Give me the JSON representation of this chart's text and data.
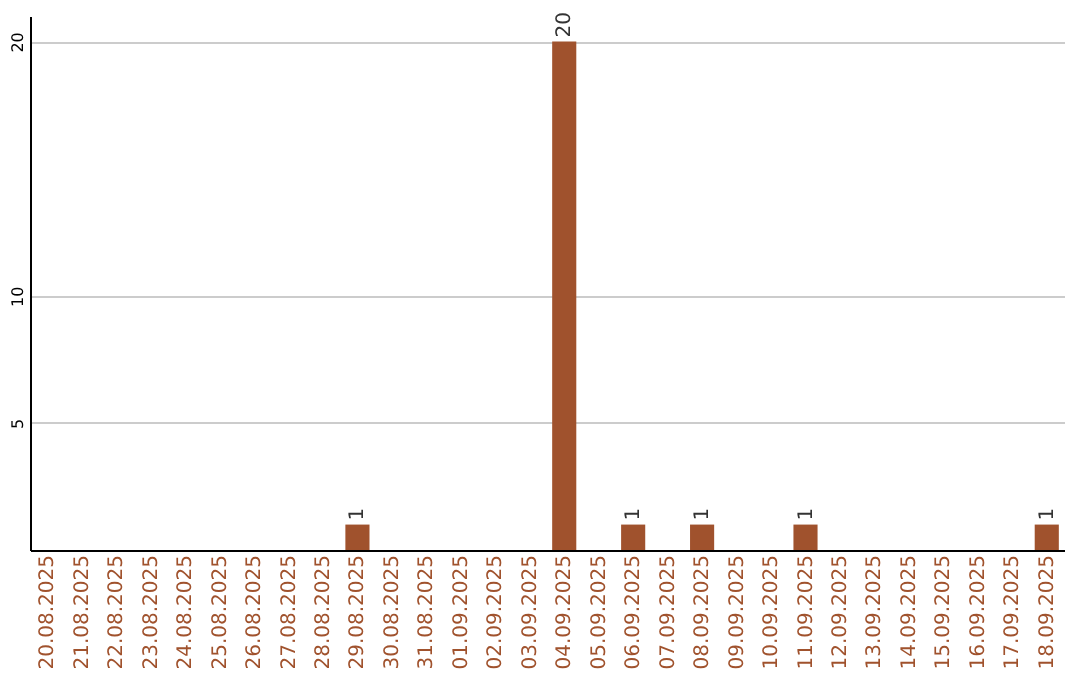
{
  "chart_data": {
    "type": "bar",
    "categories": [
      "20.08.2025",
      "21.08.2025",
      "22.08.2025",
      "23.08.2025",
      "24.08.2025",
      "25.08.2025",
      "26.08.2025",
      "27.08.2025",
      "28.08.2025",
      "29.08.2025",
      "30.08.2025",
      "31.08.2025",
      "01.09.2025",
      "02.09.2025",
      "03.09.2025",
      "04.09.2025",
      "05.09.2025",
      "06.09.2025",
      "07.09.2025",
      "08.09.2025",
      "09.09.2025",
      "10.09.2025",
      "11.09.2025",
      "12.09.2025",
      "13.09.2025",
      "14.09.2025",
      "15.09.2025",
      "16.09.2025",
      "17.09.2025",
      "18.09.2025"
    ],
    "values": [
      0,
      0,
      0,
      0,
      0,
      0,
      0,
      0,
      0,
      1,
      0,
      0,
      0,
      0,
      0,
      20,
      0,
      1,
      0,
      1,
      0,
      0,
      1,
      0,
      0,
      0,
      0,
      0,
      0,
      1
    ],
    "value_labels": [
      null,
      null,
      null,
      null,
      null,
      null,
      null,
      null,
      null,
      "1",
      null,
      null,
      null,
      null,
      null,
      "20",
      null,
      "1",
      null,
      "1",
      null,
      null,
      "1",
      null,
      null,
      null,
      null,
      null,
      null,
      "1"
    ],
    "color": "#a0522d",
    "ylim": [
      0,
      21
    ],
    "yticks": [
      5,
      10,
      20
    ],
    "grid": "y"
  }
}
